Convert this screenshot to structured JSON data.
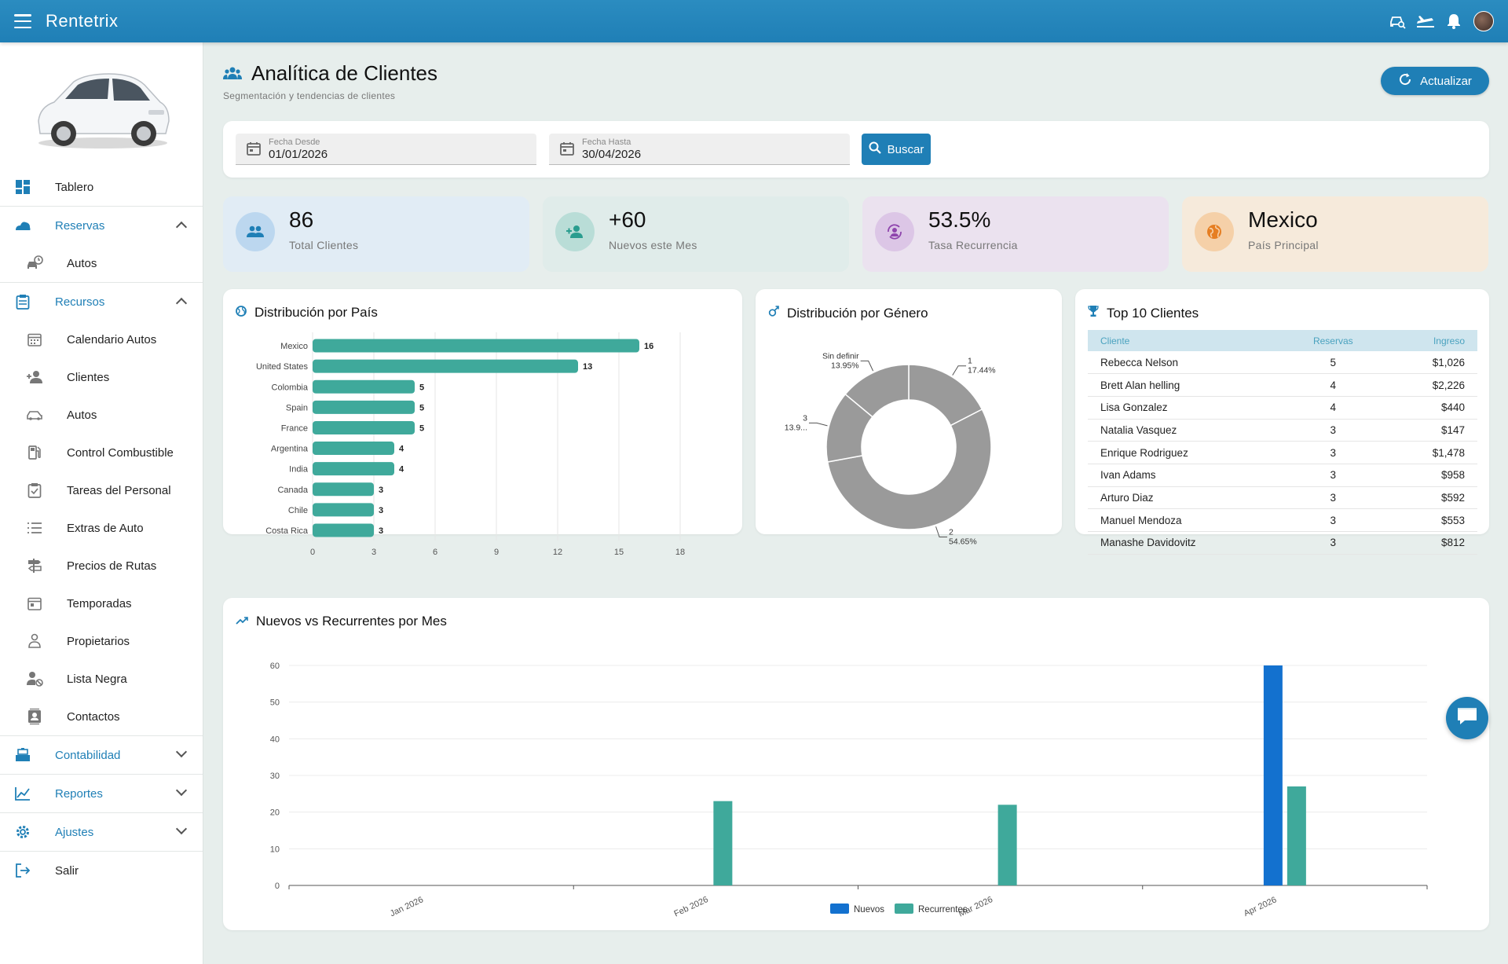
{
  "app": {
    "title": "Rentetrix"
  },
  "sidebar": {
    "items": [
      {
        "label": "Tablero"
      },
      {
        "label": "Reservas"
      },
      {
        "label": "Autos"
      },
      {
        "label": "Recursos"
      },
      {
        "label": "Calendario Autos"
      },
      {
        "label": "Clientes"
      },
      {
        "label": "Autos"
      },
      {
        "label": "Control Combustible"
      },
      {
        "label": "Tareas del Personal"
      },
      {
        "label": "Extras de Auto"
      },
      {
        "label": "Precios de Rutas"
      },
      {
        "label": "Temporadas"
      },
      {
        "label": "Propietarios"
      },
      {
        "label": "Lista Negra"
      },
      {
        "label": "Contactos"
      },
      {
        "label": "Contabilidad"
      },
      {
        "label": "Reportes"
      },
      {
        "label": "Ajustes"
      },
      {
        "label": "Salir"
      }
    ]
  },
  "page": {
    "title": "Analítica de Clientes",
    "subtitle": "Segmentación y tendencias de clientes",
    "refresh_label": "Actualizar"
  },
  "filters": {
    "from_label": "Fecha Desde",
    "from_value": "01/01/2026",
    "to_label": "Fecha Hasta",
    "to_value": "30/04/2026",
    "search_label": "Buscar"
  },
  "stats": [
    {
      "value": "86",
      "caption": "Total Clientes",
      "color": "#1f7fb6"
    },
    {
      "value": "+60",
      "caption": "Nuevos este Mes",
      "color": "#2a9d8f"
    },
    {
      "value": "53.5%",
      "caption": "Tasa Recurrencia",
      "color": "#8e44ad"
    },
    {
      "value": "Mexico",
      "caption": "País Principal",
      "color": "#e67e22"
    }
  ],
  "panels": {
    "country_title": "Distribución por País",
    "gender_title": "Distribución por Género",
    "top_title": "Top 10 Clientes",
    "monthly_title": "Nuevos vs Recurrentes por Mes"
  },
  "top_clients": {
    "headers": [
      "Cliente",
      "Reservas",
      "Ingreso"
    ],
    "rows": [
      [
        "Rebecca Nelson",
        "5",
        "$1,026"
      ],
      [
        "Brett Alan helling",
        "4",
        "$2,226"
      ],
      [
        "Lisa Gonzalez",
        "4",
        "$440"
      ],
      [
        "Natalia Vasquez",
        "3",
        "$147"
      ],
      [
        "Enrique Rodriguez",
        "3",
        "$1,478"
      ],
      [
        "Ivan Adams",
        "3",
        "$958"
      ],
      [
        "Arturo Diaz",
        "3",
        "$592"
      ],
      [
        "Manuel Mendoza",
        "3",
        "$553"
      ],
      [
        "Manashe Davidovitz",
        "3",
        "$812"
      ]
    ]
  },
  "chart_data": [
    {
      "type": "bar",
      "orientation": "horizontal",
      "categories": [
        "Mexico",
        "United States",
        "Colombia",
        "Spain",
        "France",
        "Argentina",
        "India",
        "Canada",
        "Chile",
        "Costa Rica"
      ],
      "values": [
        16,
        13,
        5,
        5,
        5,
        4,
        4,
        3,
        3,
        3
      ],
      "xlim": [
        0,
        18
      ],
      "xticks": [
        "0",
        "3",
        "6",
        "9",
        "12",
        "15",
        "18"
      ],
      "grid": true,
      "color": "#3fa99b"
    },
    {
      "type": "pie",
      "donut": true,
      "slices": [
        {
          "label": "1",
          "value": 17.44,
          "pct": "17.44%"
        },
        {
          "label": "2",
          "value": 54.65,
          "pct": "54.65%"
        },
        {
          "label": "3",
          "value": 13.95,
          "pct": "13.9..."
        },
        {
          "label": "Sin definir",
          "value": 13.95,
          "pct": "13.95%"
        }
      ],
      "color": "#9a9a9a"
    },
    {
      "type": "bar",
      "categories": [
        "Jan 2026",
        "Feb 2026",
        "Mar 2026",
        "Apr 2026"
      ],
      "series": [
        {
          "name": "Nuevos",
          "values": [
            0,
            0,
            0,
            60
          ],
          "color": "#1371cf"
        },
        {
          "name": "Recurrentes",
          "values": [
            0,
            23,
            22,
            27
          ],
          "color": "#3fa99b"
        }
      ],
      "ylim": [
        0,
        60
      ],
      "yticks": [
        "0",
        "10",
        "20",
        "30",
        "40",
        "50",
        "60"
      ],
      "legend": "bottom"
    }
  ]
}
